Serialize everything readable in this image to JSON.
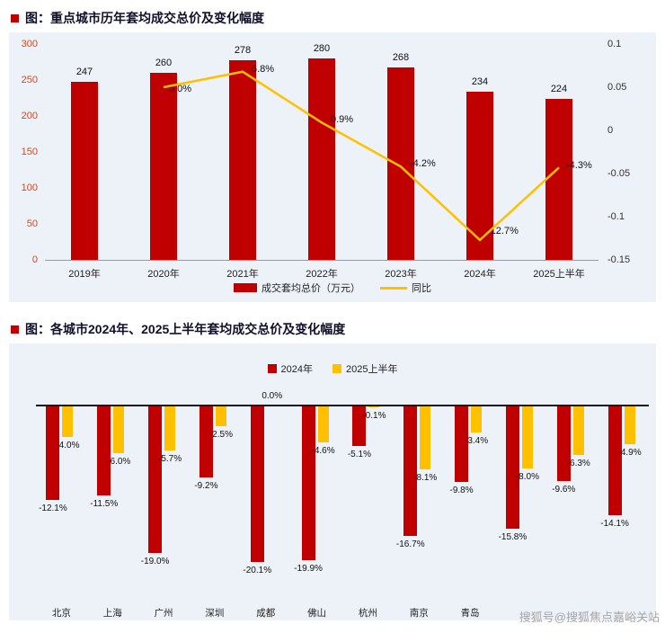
{
  "page": {
    "watermark": "搜狐号@搜狐焦点嘉峪关站"
  },
  "palette": {
    "bar_red": "#c00000",
    "line_yellow": "#ffc000",
    "panel_background": "#edf1f8",
    "left_axis_label_color": "#d0491c",
    "watermark_gray": "#a6a6a6"
  },
  "chart_data": [
    {
      "type": "bar+line",
      "title": "图：重点城市历年套均成交总价及变化幅度",
      "categories": [
        "2019年",
        "2020年",
        "2021年",
        "2022年",
        "2023年",
        "2024年",
        "2025上半年"
      ],
      "series": [
        {
          "name": "成交套均总价（万元）",
          "type": "bar",
          "axis": "left",
          "color": "#c00000",
          "values": [
            247,
            260,
            278,
            280,
            268,
            234,
            224
          ]
        },
        {
          "name": "同比",
          "type": "line",
          "axis": "right",
          "color": "#ffc000",
          "values": [
            null,
            0.05,
            0.068,
            0.009,
            -0.042,
            -0.127,
            -0.043
          ],
          "labels": [
            "",
            "5.0%",
            "6.8%",
            "0.9%",
            "-4.2%",
            "-12.7%",
            "-4.3%"
          ]
        }
      ],
      "left_axis": {
        "range": [
          0,
          300
        ],
        "ticks": [
          0,
          50,
          100,
          150,
          200,
          250,
          300
        ]
      },
      "right_axis": {
        "range": [
          -0.15,
          0.1
        ],
        "ticks": [
          0.1,
          0.05,
          0,
          -0.05,
          -0.1,
          -0.15
        ]
      },
      "grid": false,
      "legend_position": "bottom"
    },
    {
      "type": "bar",
      "title": "图：各城市2024年、2025上半年套均成交总价及变化幅度",
      "categories": [
        "北京",
        "上海",
        "广州",
        "深圳",
        "成都",
        "佛山",
        "杭州",
        "南京",
        "青岛",
        "",
        "",
        ""
      ],
      "series": [
        {
          "name": "2024年",
          "color": "#c00000",
          "values": [
            -12.1,
            -11.5,
            -19.0,
            -9.2,
            -20.1,
            -19.9,
            -5.1,
            -16.7,
            -9.8,
            -15.8,
            -9.6,
            -14.1
          ]
        },
        {
          "name": "2025上半年",
          "color": "#ffc000",
          "values": [
            -4.0,
            -6.0,
            -5.7,
            -2.5,
            0.0,
            -4.6,
            -0.1,
            -8.1,
            -3.4,
            -8.0,
            -6.3,
            -4.9
          ]
        }
      ],
      "ylim": [
        -22,
        0
      ],
      "grid": false,
      "legend_position": "top"
    }
  ]
}
